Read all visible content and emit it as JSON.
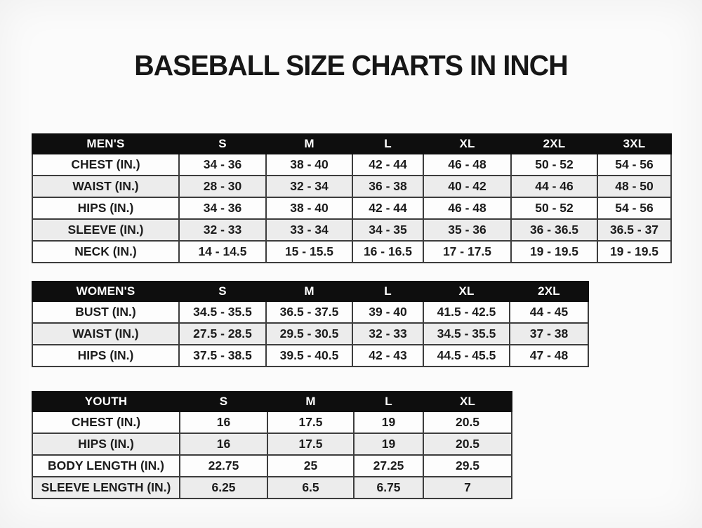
{
  "title": "BASEBALL SIZE CHARTS IN INCH",
  "colors": {
    "header_bg": "#0e0e0e",
    "header_text": "#ffffff",
    "row_even_bg": "#ececec",
    "row_odd_bg": "#fdfdfd",
    "border": "#3d3d3d",
    "text": "#1c1c1c",
    "page_bg": "#fbfbfb"
  },
  "tables": [
    {
      "id": "mens",
      "header": [
        "MEN'S",
        "S",
        "M",
        "L",
        "XL",
        "2XL",
        "3XL"
      ],
      "rows": [
        [
          "CHEST (IN.)",
          "34 - 36",
          "38 - 40",
          "42 - 44",
          "46 - 48",
          "50 - 52",
          "54 - 56"
        ],
        [
          "WAIST (IN.)",
          "28 - 30",
          "32 - 34",
          "36 - 38",
          "40 - 42",
          "44 - 46",
          "48 - 50"
        ],
        [
          "HIPS (IN.)",
          "34 - 36",
          "38 - 40",
          "42 - 44",
          "46 - 48",
          "50 - 52",
          "54 - 56"
        ],
        [
          "SLEEVE (IN.)",
          "32 - 33",
          "33 - 34",
          "34 - 35",
          "35 - 36",
          "36 - 36.5",
          "36.5 - 37"
        ],
        [
          "NECK (IN.)",
          "14 - 14.5",
          "15 - 15.5",
          "16 - 16.5",
          "17 - 17.5",
          "19 - 19.5",
          "19 - 19.5"
        ]
      ]
    },
    {
      "id": "womens",
      "header": [
        "WOMEN'S",
        "S",
        "M",
        "L",
        "XL",
        "2XL"
      ],
      "rows": [
        [
          "BUST (IN.)",
          "34.5 - 35.5",
          "36.5 - 37.5",
          "39 - 40",
          "41.5 - 42.5",
          "44 - 45"
        ],
        [
          "WAIST (IN.)",
          "27.5 - 28.5",
          "29.5 - 30.5",
          "32 - 33",
          "34.5 - 35.5",
          "37 - 38"
        ],
        [
          "HIPS (IN.)",
          "37.5 - 38.5",
          "39.5 - 40.5",
          "42 - 43",
          "44.5 - 45.5",
          "47 - 48"
        ]
      ]
    },
    {
      "id": "youth",
      "header": [
        "YOUTH",
        "S",
        "M",
        "L",
        "XL"
      ],
      "rows": [
        [
          "CHEST (IN.)",
          "16",
          "17.5",
          "19",
          "20.5"
        ],
        [
          "HIPS (IN.)",
          "16",
          "17.5",
          "19",
          "20.5"
        ],
        [
          "BODY LENGTH (IN.)",
          "22.75",
          "25",
          "27.25",
          "29.5"
        ],
        [
          "SLEEVE LENGTH (IN.)",
          "6.25",
          "6.5",
          "6.75",
          "7"
        ]
      ]
    }
  ]
}
